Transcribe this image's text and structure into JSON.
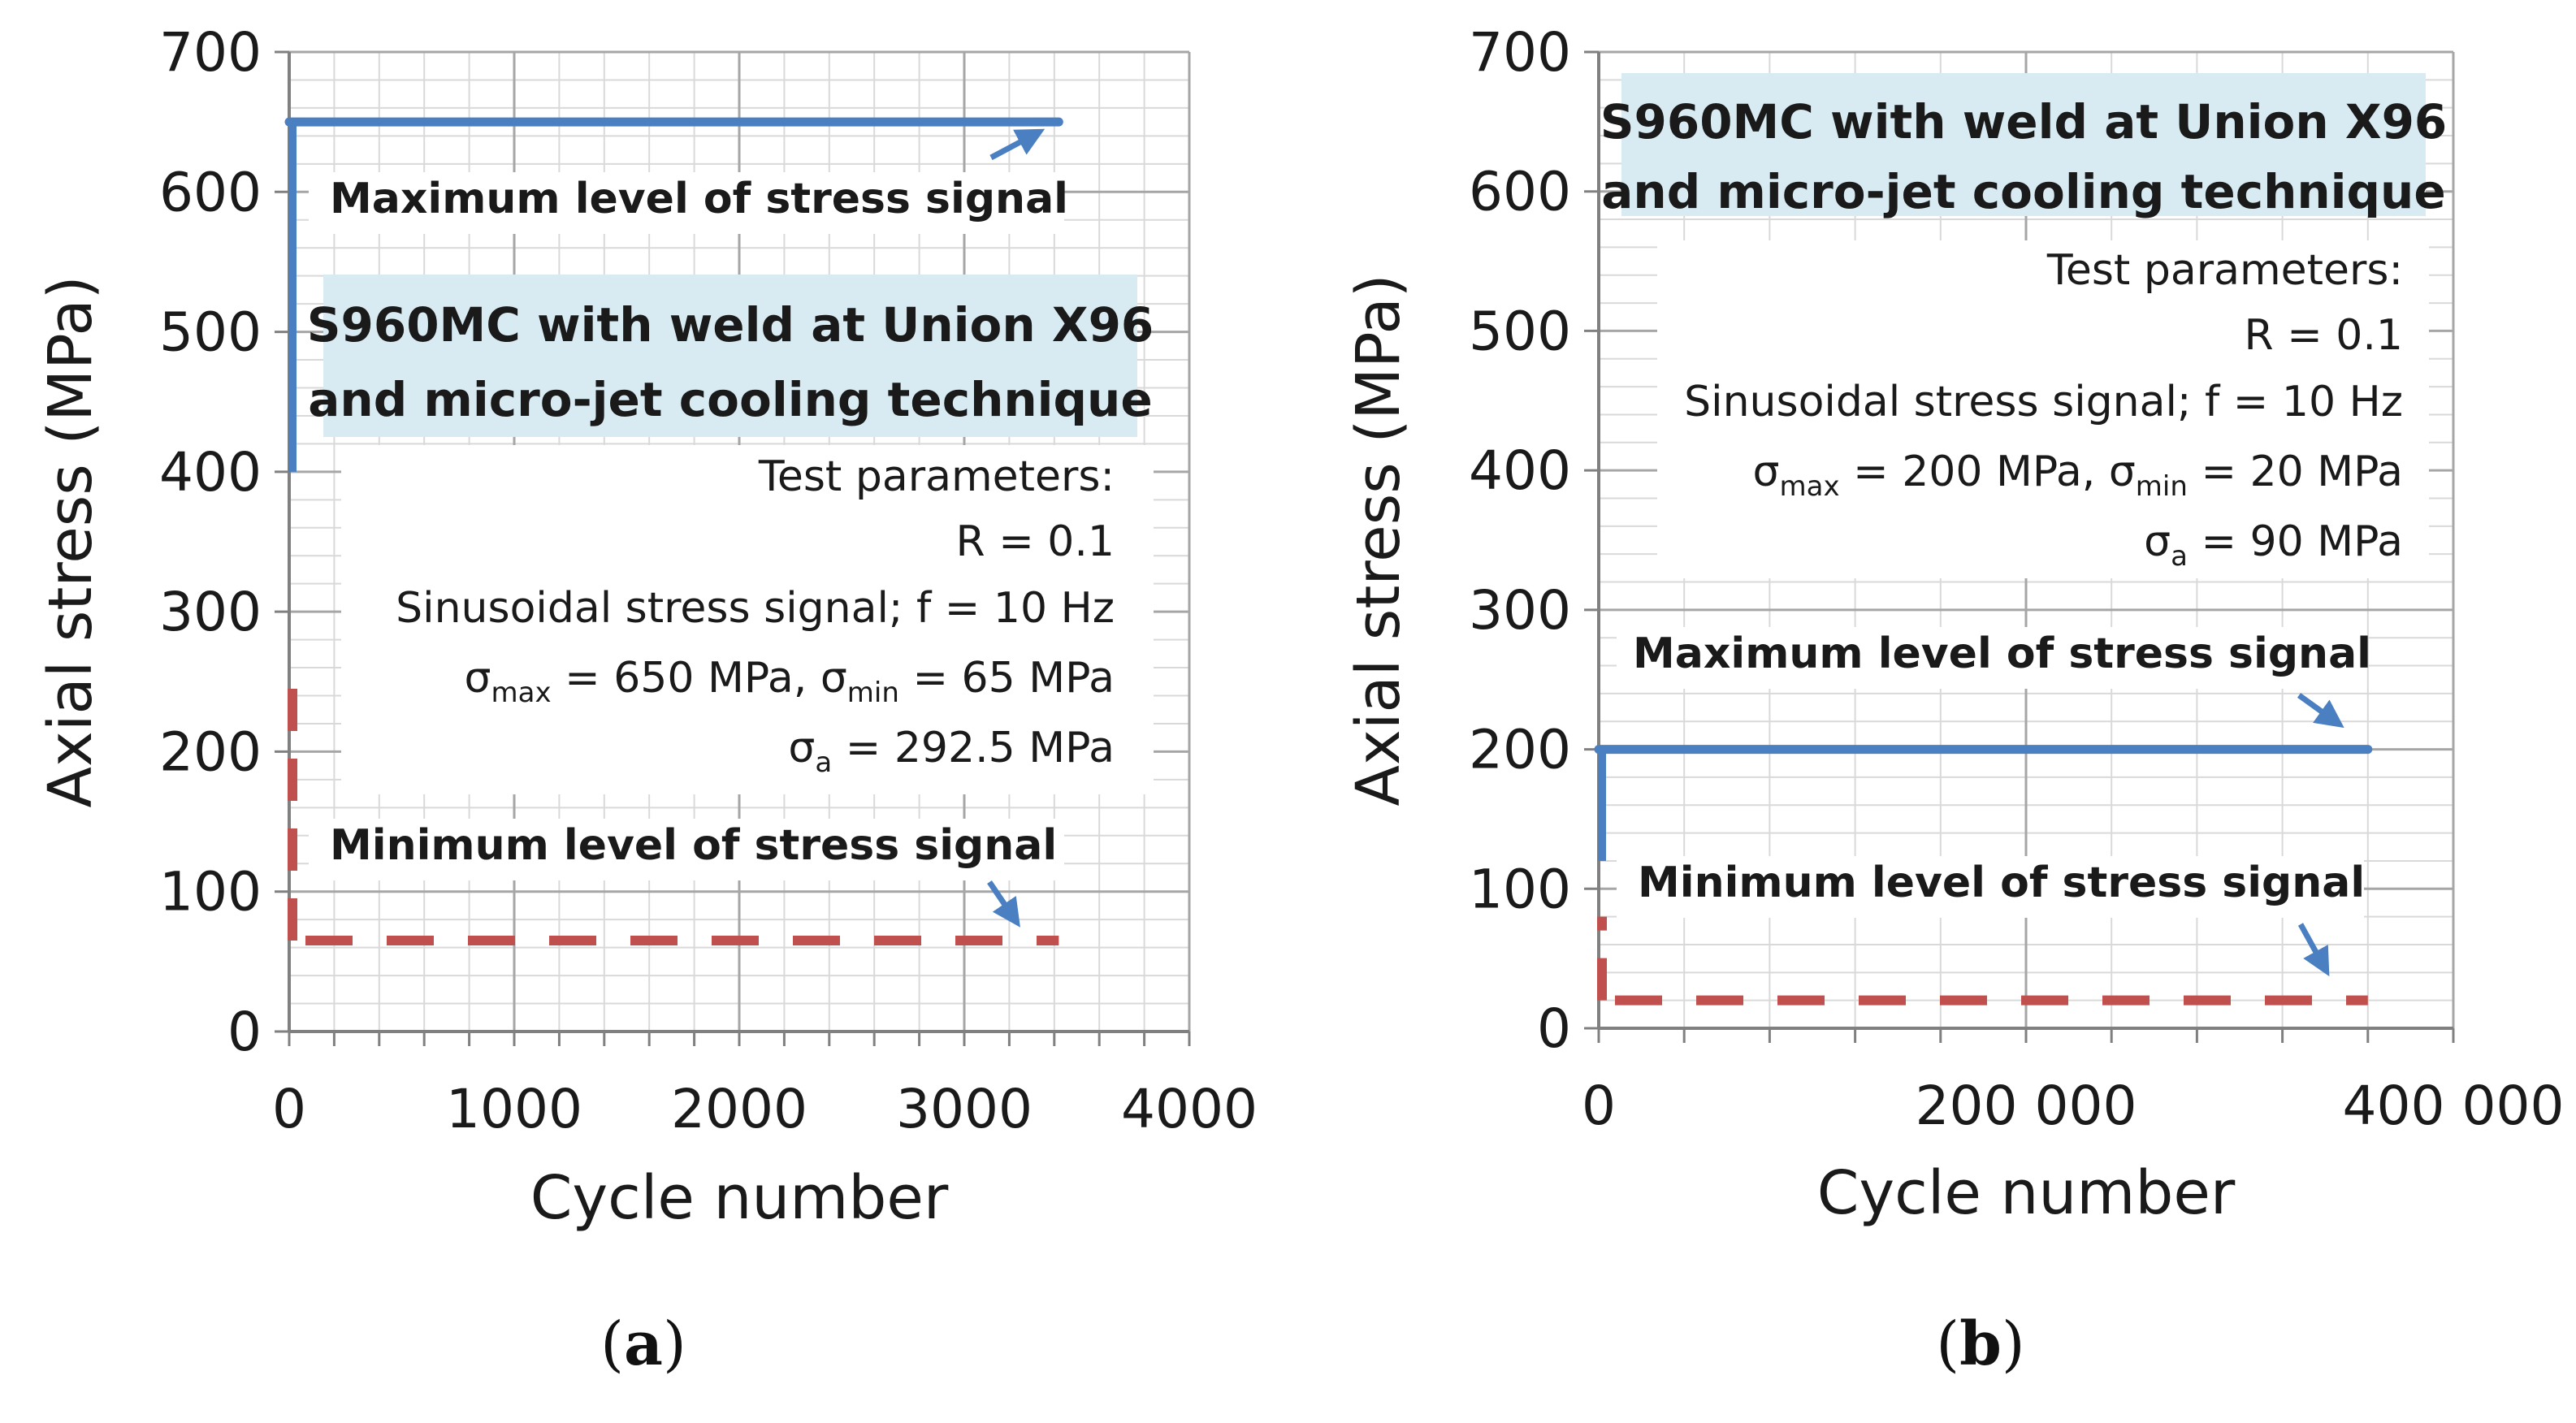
{
  "colors": {
    "max_series": "#4a7fc1",
    "min_series": "#c0504d",
    "title_box": "#d8ebf3",
    "grid_major": "#a6a6a6",
    "grid_minor": "#d9d9d9"
  },
  "chart_data": [
    {
      "type": "line",
      "panel_label": "a",
      "title": "S960MC with weld at Union X96 and micro-jet cooling technique",
      "title_lines": [
        "S960MC with weld at Union X96",
        "and micro-jet cooling technique"
      ],
      "xlabel": "Cycle number",
      "ylabel": "Axial stress (MPa)",
      "xlim": [
        0,
        4000
      ],
      "ylim": [
        0,
        700
      ],
      "x_ticks": [
        0,
        1000,
        2000,
        3000,
        4000
      ],
      "x_tick_labels": [
        "0",
        "1000",
        "2000",
        "3000",
        "4000"
      ],
      "y_ticks": [
        0,
        100,
        200,
        300,
        400,
        500,
        600,
        700
      ],
      "y_tick_labels": [
        "0",
        "100",
        "200",
        "300",
        "400",
        "500",
        "600",
        "700"
      ],
      "x_minor_step": 200,
      "y_minor_step": 20,
      "params_heading": "Test parameters:",
      "params": {
        "r": "R = 0.1",
        "signal": "Sinusoidal stress signal; f = 10 Hz",
        "sigma_symbol": "σ",
        "sub_max": "max",
        "sub_min": "min",
        "sub_a": "a",
        "max_value": " = 650 MPa, ",
        "min_value": " = 65 MPa",
        "a_value": " = 292.5 MPa"
      },
      "annotations": {
        "max": "Maximum level of stress  signal",
        "min": "Minimum level of stress  signal"
      },
      "series": [
        {
          "name": "Maximum level of stress  signal",
          "x": [
            0,
            3420
          ],
          "y": [
            650,
            650
          ],
          "startup": {
            "x": [
              0,
              0
            ],
            "y": [
              400,
              650
            ]
          }
        },
        {
          "name": "Minimum level of stress  signal",
          "x": [
            0,
            3420
          ],
          "y": [
            65,
            65
          ],
          "startup": {
            "x": [
              0,
              0
            ],
            "y": [
              65,
              250
            ]
          }
        }
      ]
    },
    {
      "type": "line",
      "panel_label": "b",
      "title": "S960MC with weld at Union X96 and micro-jet cooling technique",
      "title_lines": [
        "S960MC with weld at Union X96",
        "and micro-jet cooling technique"
      ],
      "xlabel": "Cycle number",
      "ylabel": "Axial stress (MPa)",
      "xlim": [
        0,
        400000
      ],
      "ylim": [
        0,
        700
      ],
      "x_ticks": [
        0,
        200000,
        400000
      ],
      "x_tick_labels": [
        "0",
        "200 000",
        "400 000"
      ],
      "y_ticks": [
        0,
        100,
        200,
        300,
        400,
        500,
        600,
        700
      ],
      "y_tick_labels": [
        "0",
        "100",
        "200",
        "300",
        "400",
        "500",
        "600",
        "700"
      ],
      "x_minor_step": 40000,
      "y_minor_step": 20,
      "params_heading": "Test parameters:",
      "params": {
        "r": "R = 0.1",
        "signal": "Sinusoidal stress signal; f = 10 Hz",
        "sigma_symbol": "σ",
        "sub_max": "max",
        "sub_min": "min",
        "sub_a": "a",
        "max_value": " = 200 MPa, ",
        "min_value": " = 20 MPa",
        "a_value": " = 90 MPa"
      },
      "annotations": {
        "max": "Maximum level of stress  signal",
        "min": "Minimum level of stress  signal"
      },
      "series": [
        {
          "name": "Maximum level of stress  signal",
          "x": [
            0,
            360000
          ],
          "y": [
            200,
            200
          ],
          "startup": {
            "x": [
              0,
              0
            ],
            "y": [
              120,
              200
            ]
          }
        },
        {
          "name": "Minimum level of stress  signal",
          "x": [
            0,
            360000
          ],
          "y": [
            20,
            20
          ],
          "startup": {
            "x": [
              0,
              0
            ],
            "y": [
              20,
              80
            ]
          }
        }
      ]
    }
  ]
}
